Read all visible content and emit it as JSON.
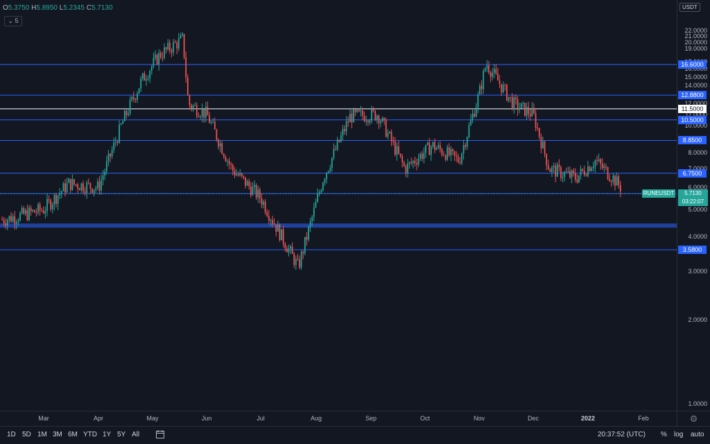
{
  "legend": {
    "open_label": "O",
    "open": "5.3750",
    "high_label": "H",
    "high": "5.8950",
    "low_label": "L",
    "low": "5.2345",
    "close_label": "C",
    "close": "5.7130",
    "indicator_count": "5"
  },
  "price_axis": {
    "currency": "USDT",
    "ticks": [
      "1.0000",
      "2.0000",
      "3.0000",
      "4.0000",
      "5.0000",
      "6.0000",
      "7.0000",
      "8.0000",
      "10.0000",
      "11.0000",
      "12.0000",
      "14.0000",
      "15.0000",
      "16.0000",
      "17.0000",
      "19.0000",
      "20.0000",
      "21.0000",
      "22.0000"
    ],
    "tick_values": [
      1,
      2,
      3,
      4,
      5,
      6,
      7,
      8,
      10,
      11,
      12,
      14,
      15,
      16,
      17,
      19,
      20,
      21,
      22
    ]
  },
  "levels": [
    {
      "label": "16.6000",
      "value": 16.6,
      "color": "#2962ff"
    },
    {
      "label": "12.8800",
      "value": 12.88,
      "color": "#2962ff"
    },
    {
      "label": "11.5000",
      "value": 11.5,
      "color": "#ffffff"
    },
    {
      "label": "10.5000",
      "value": 10.5,
      "color": "#2962ff"
    },
    {
      "label": "8.8500",
      "value": 8.85,
      "color": "#2962ff"
    },
    {
      "label": "6.7500",
      "value": 6.75,
      "color": "#2962ff"
    },
    {
      "label": "5.7000",
      "value": 5.7,
      "color": "#2962ff"
    },
    {
      "label": "3.5800",
      "value": 3.58,
      "color": "#2962ff"
    }
  ],
  "support_zone": {
    "low": 4.3,
    "high": 4.45,
    "color": "#2962ff"
  },
  "current": {
    "symbol": "RUNEUSDT",
    "price": "5.7130",
    "countdown": "03:22:07",
    "value": 5.713
  },
  "time_axis": {
    "months": [
      "Mar",
      "Apr",
      "May",
      "Jun",
      "Jul",
      "Aug",
      "Sep",
      "Oct",
      "Nov",
      "Dec",
      "2022",
      "Feb"
    ]
  },
  "bottom_bar": {
    "ranges": [
      "1D",
      "5D",
      "1M",
      "3M",
      "6M",
      "YTD",
      "1Y",
      "5Y",
      "All"
    ],
    "clock": "20:37:52 (UTC)",
    "percent": "%",
    "log": "log",
    "auto": "auto"
  },
  "icons": {
    "settings": "gear-icon",
    "compare": "calendar-goto-icon",
    "indicators": "chevron-down-icon"
  },
  "colors": {
    "background": "#131722",
    "up": "#26a69a",
    "down": "#ef5350",
    "level": "#2962ff"
  },
  "chart_data": {
    "type": "candlestick",
    "symbol": "RUNEUSDT",
    "quote": "USDT",
    "x_months": [
      "Mar",
      "Apr",
      "May",
      "Jun",
      "Jul",
      "Aug",
      "Sep",
      "Oct",
      "Nov",
      "Dec",
      "2022",
      "Feb"
    ],
    "y_ticks": [
      1,
      2,
      3,
      4,
      5,
      6,
      7,
      8,
      10,
      11,
      12,
      14,
      15,
      16,
      17,
      19,
      20,
      21,
      22
    ],
    "approx_close_path": [
      {
        "x": "Feb 10",
        "y": 4.6
      },
      {
        "x": "Mar 1",
        "y": 5.0
      },
      {
        "x": "Mar 15",
        "y": 6.2
      },
      {
        "x": "Apr 1",
        "y": 6.0
      },
      {
        "x": "Apr 15",
        "y": 10.5
      },
      {
        "x": "Apr 25",
        "y": 14.5
      },
      {
        "x": "May 5",
        "y": 18.0
      },
      {
        "x": "May 18",
        "y": 20.5
      },
      {
        "x": "May 21",
        "y": 12.0
      },
      {
        "x": "Jun 1",
        "y": 11.0
      },
      {
        "x": "Jun 15",
        "y": 7.0
      },
      {
        "x": "Jul 1",
        "y": 5.5
      },
      {
        "x": "Jul 22",
        "y": 3.1
      },
      {
        "x": "Aug 5",
        "y": 6.5
      },
      {
        "x": "Aug 20",
        "y": 10.8
      },
      {
        "x": "Sep 5",
        "y": 11.0
      },
      {
        "x": "Sep 20",
        "y": 7.0
      },
      {
        "x": "Oct 5",
        "y": 8.5
      },
      {
        "x": "Oct 20",
        "y": 7.5
      },
      {
        "x": "Nov 1",
        "y": 13.0
      },
      {
        "x": "Nov 5",
        "y": 16.8
      },
      {
        "x": "Nov 20",
        "y": 12.0
      },
      {
        "x": "Dec 1",
        "y": 11.0
      },
      {
        "x": "Dec 10",
        "y": 7.0
      },
      {
        "x": "Dec 25",
        "y": 6.5
      },
      {
        "x": "Jan 5",
        "y": 7.5
      },
      {
        "x": "Jan 15",
        "y": 6.5
      },
      {
        "x": "Jan 22",
        "y": 5.713
      }
    ]
  }
}
